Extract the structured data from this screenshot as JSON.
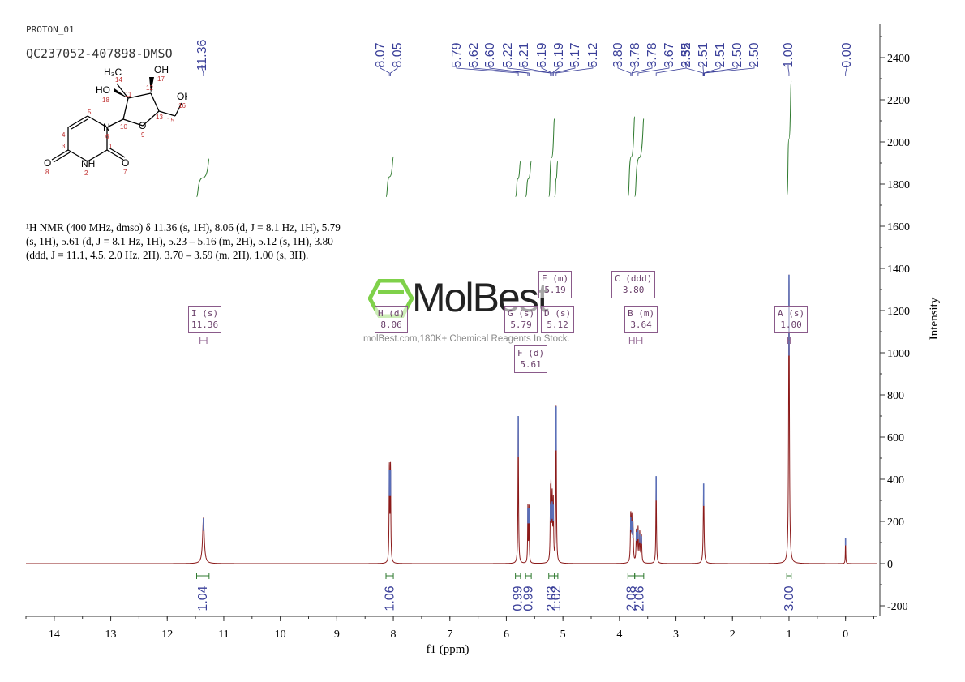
{
  "header": {
    "experiment": "PROTON_01",
    "sample": "QC237052-407898-DMSO"
  },
  "nmr_text": "¹H NMR (400 MHz, dmso) δ 11.36 (s, 1H), 8.06 (d, J = 8.1 Hz, 1H), 5.79 (s, 1H), 5.61 (d, J = 8.1 Hz, 1H), 5.23 – 5.16 (m, 2H), 5.12 (s, 1H), 3.80 (ddd, J = 11.1, 4.5, 2.0 Hz, 2H), 3.70 – 3.59 (m, 2H), 1.00 (s, 3H).",
  "watermark": {
    "logo": "MolBest",
    "tagline": "molBest.com,180K+ Chemical Reagents In Stock."
  },
  "molecule": {
    "atoms": [
      {
        "label": "HO",
        "num": "18"
      },
      {
        "label": "H₃C",
        "num": "14"
      },
      {
        "label": "OH",
        "num": "17"
      },
      {
        "label": "OH",
        "num": "16"
      },
      {
        "label": "N",
        "num": "6"
      },
      {
        "label": "O",
        "num": "9"
      },
      {
        "label": "O",
        "num": "8"
      },
      {
        "label": "NH",
        "num": "2"
      },
      {
        "label": "O",
        "num": "7"
      }
    ],
    "numbers": [
      "11",
      "12",
      "13",
      "15",
      "10",
      "5",
      "4",
      "3",
      "1"
    ]
  },
  "chart_data": {
    "type": "line",
    "title": "",
    "xlabel": "f1 (ppm)",
    "ylabel": "Intensity",
    "xlim": [
      14.5,
      -0.55
    ],
    "ylim": [
      -250,
      2580
    ],
    "x_ticks": [
      14,
      13,
      12,
      11,
      10,
      9,
      8,
      7,
      6,
      5,
      4,
      3,
      2,
      1,
      0
    ],
    "y_ticks": [
      -200,
      0,
      200,
      400,
      600,
      800,
      1000,
      1200,
      1400,
      1600,
      1800,
      2000,
      2200,
      2400
    ],
    "series": [
      {
        "peaks": [
          {
            "ppm": 11.36,
            "height": 215,
            "width": 0.018
          },
          {
            "ppm": 8.07,
            "height": 445,
            "width": 0.006
          },
          {
            "ppm": 8.05,
            "height": 445,
            "width": 0.006
          },
          {
            "ppm": 5.79,
            "height": 700,
            "width": 0.006
          },
          {
            "ppm": 5.62,
            "height": 265,
            "width": 0.005
          },
          {
            "ppm": 5.6,
            "height": 265,
            "width": 0.005
          },
          {
            "ppm": 5.22,
            "height": 280,
            "width": 0.006
          },
          {
            "ppm": 5.21,
            "height": 290,
            "width": 0.006
          },
          {
            "ppm": 5.19,
            "height": 295,
            "width": 0.006
          },
          {
            "ppm": 5.17,
            "height": 280,
            "width": 0.006
          },
          {
            "ppm": 5.12,
            "height": 745,
            "width": 0.006
          },
          {
            "ppm": 3.8,
            "height": 220,
            "width": 0.007
          },
          {
            "ppm": 3.78,
            "height": 200,
            "width": 0.007
          },
          {
            "ppm": 3.76,
            "height": 170,
            "width": 0.007
          },
          {
            "ppm": 3.7,
            "height": 150,
            "width": 0.007
          },
          {
            "ppm": 3.67,
            "height": 160,
            "width": 0.007
          },
          {
            "ppm": 3.64,
            "height": 140,
            "width": 0.007
          },
          {
            "ppm": 3.61,
            "height": 130,
            "width": 0.007
          },
          {
            "ppm": 3.35,
            "height": 415,
            "width": 0.006
          },
          {
            "ppm": 2.51,
            "height": 380,
            "width": 0.008
          },
          {
            "ppm": 1.0,
            "height": 1370,
            "width": 0.008
          },
          {
            "ppm": 0.0,
            "height": 120,
            "width": 0.004
          }
        ]
      }
    ],
    "peak_labels": [
      {
        "group": "11.36",
        "items": [
          "11.36"
        ]
      },
      {
        "group": "8.0x",
        "items": [
          "8.07",
          "8.05"
        ]
      },
      {
        "group": "5.x",
        "items": [
          "5.79",
          "5.62",
          "5.60",
          "5.22",
          "5.21",
          "5.19",
          "5.19",
          "5.17",
          "5.12"
        ]
      },
      {
        "group": "3.x",
        "items": [
          "3.80",
          "3.78",
          "3.78",
          "3.67",
          "3.35"
        ]
      },
      {
        "group": "2.5x",
        "items": [
          "2.52",
          "2.51",
          "2.51",
          "2.50",
          "2.50"
        ]
      },
      {
        "group": "1.00",
        "items": [
          "1.00"
        ]
      },
      {
        "group": "0.00",
        "items": [
          "0.00"
        ]
      }
    ],
    "integrals": [
      {
        "from": 11.48,
        "to": 11.26,
        "value": "1.04",
        "curve_height": 1920
      },
      {
        "from": 8.13,
        "to": 8.0,
        "value": "1.06",
        "curve_height": 1930
      },
      {
        "from": 5.84,
        "to": 5.75,
        "value": "0.99",
        "curve_height": 1910
      },
      {
        "from": 5.66,
        "to": 5.56,
        "value": "0.99",
        "curve_height": 1910
      },
      {
        "from": 5.25,
        "to": 5.15,
        "value": "2.03",
        "curve_height": 2110
      },
      {
        "from": 5.15,
        "to": 5.09,
        "value": "1.02",
        "curve_height": 1910
      },
      {
        "from": 3.85,
        "to": 3.73,
        "value": "2.08",
        "curve_height": 2120
      },
      {
        "from": 3.73,
        "to": 3.57,
        "value": "2.06",
        "curve_height": 2110
      },
      {
        "from": 1.04,
        "to": 0.96,
        "value": "3.00",
        "curve_height": 2290
      }
    ],
    "multiplets": [
      {
        "id": "I",
        "type": "s",
        "shift": "11.36"
      },
      {
        "id": "H",
        "type": "d",
        "shift": "8.06"
      },
      {
        "id": "G",
        "type": "s",
        "shift": "5.79"
      },
      {
        "id": "F",
        "type": "d",
        "shift": "5.61"
      },
      {
        "id": "E",
        "type": "m",
        "shift": "5.19"
      },
      {
        "id": "D",
        "type": "s",
        "shift": "5.12"
      },
      {
        "id": "C",
        "type": "ddd",
        "shift": "3.80"
      },
      {
        "id": "B",
        "type": "m",
        "shift": "3.64"
      },
      {
        "id": "A",
        "type": "s",
        "shift": "1.00"
      }
    ]
  }
}
